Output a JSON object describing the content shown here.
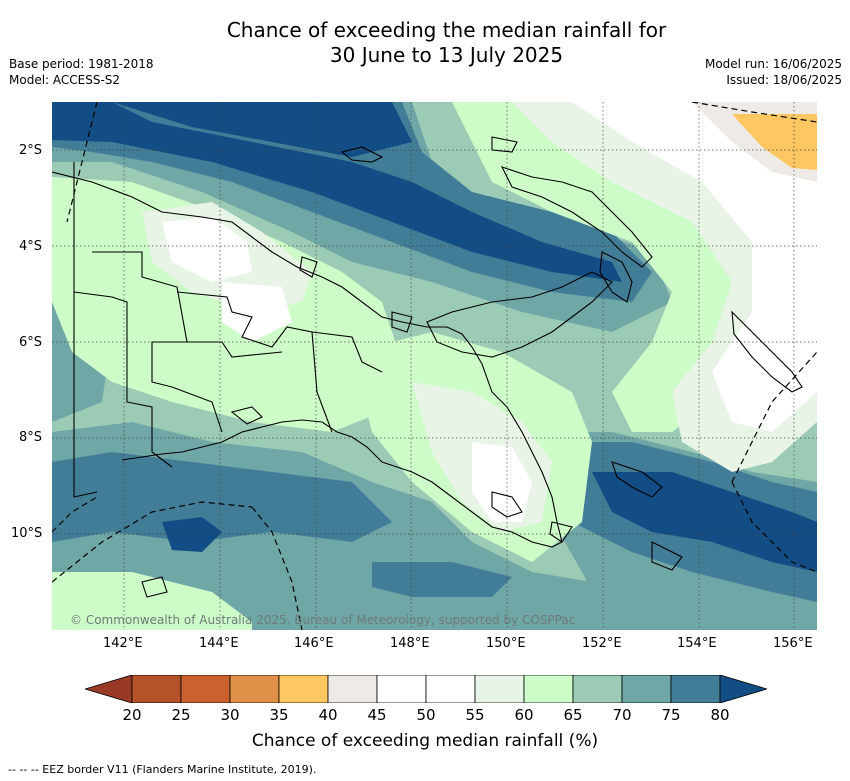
{
  "title_line1": "Chance of exceeding the median rainfall for",
  "title_line2": "30 June to 13 July 2025",
  "meta": {
    "base_period": "Base period: 1981-2018",
    "model": "Model: ACCESS-S2",
    "model_run": "Model run: 16/06/2025",
    "issued": "Issued: 18/06/2025"
  },
  "map": {
    "lat_labels": [
      "2°S",
      "4°S",
      "6°S",
      "8°S",
      "10°S"
    ],
    "lon_labels": [
      "142°E",
      "144°E",
      "146°E",
      "148°E",
      "150°E",
      "152°E",
      "154°E",
      "156°E"
    ],
    "credit": "© Commonwealth of Australia 2025, Bureau of Meteorology, supported by COSPPac",
    "colors": {
      "c70_75": "#6fa6a6",
      "c75_80": "#427d98",
      "c80": "#124d86",
      "c65_70": "#9ccbb5",
      "c60_65": "#cdfcc8",
      "c55_60": "#e8f4e6",
      "c50_55": "#ffffff",
      "c40_45": "#eeebe6",
      "c35_40": "#fec761"
    }
  },
  "colorbar": {
    "title": "Chance of exceeding median rainfall (%)",
    "labels": [
      "20",
      "25",
      "30",
      "35",
      "40",
      "45",
      "50",
      "55",
      "60",
      "65",
      "70",
      "75",
      "80"
    ],
    "colors": [
      "#b5522a",
      "#c9622e",
      "#e09047",
      "#fec761",
      "#eeebe6",
      "#ffffff",
      "#ffffff",
      "#e8f4e6",
      "#cdfcc8",
      "#9ccbb5",
      "#6fa6a6",
      "#427d98"
    ],
    "under_color": "#993a26",
    "over_color": "#124d86"
  },
  "footer": "-- --  -- EEZ border V11 (Flanders Marine Institute, 2019)."
}
